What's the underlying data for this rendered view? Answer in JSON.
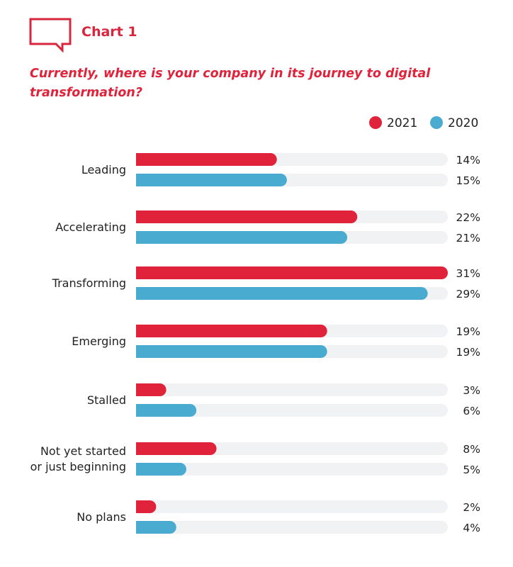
{
  "header": {
    "title": "Chart 1",
    "icon": "speech-bubble-icon"
  },
  "chart_data": {
    "type": "bar",
    "orientation": "horizontal",
    "title": "Currently, where is your company in its journey to digital transformation?",
    "title_lines": [
      "Currently, where is your company in its journey to digital",
      "transformation?"
    ],
    "categories": [
      [
        "Leading"
      ],
      [
        "Accelerating"
      ],
      [
        "Transforming"
      ],
      [
        "Emerging"
      ],
      [
        "Stalled"
      ],
      [
        "Not yet started",
        "or just beginning"
      ],
      [
        "No plans"
      ]
    ],
    "series": [
      {
        "name": "2021",
        "color": "#e0223a",
        "values": [
          14,
          22,
          31,
          19,
          3,
          8,
          2
        ]
      },
      {
        "name": "2020",
        "color": "#4aabd0",
        "values": [
          15,
          21,
          29,
          19,
          6,
          5,
          4
        ]
      }
    ],
    "value_suffix": "%",
    "xlim": [
      0,
      31
    ],
    "track_color": "#f1f2f3",
    "legend_position": "top-right",
    "grid": false
  }
}
